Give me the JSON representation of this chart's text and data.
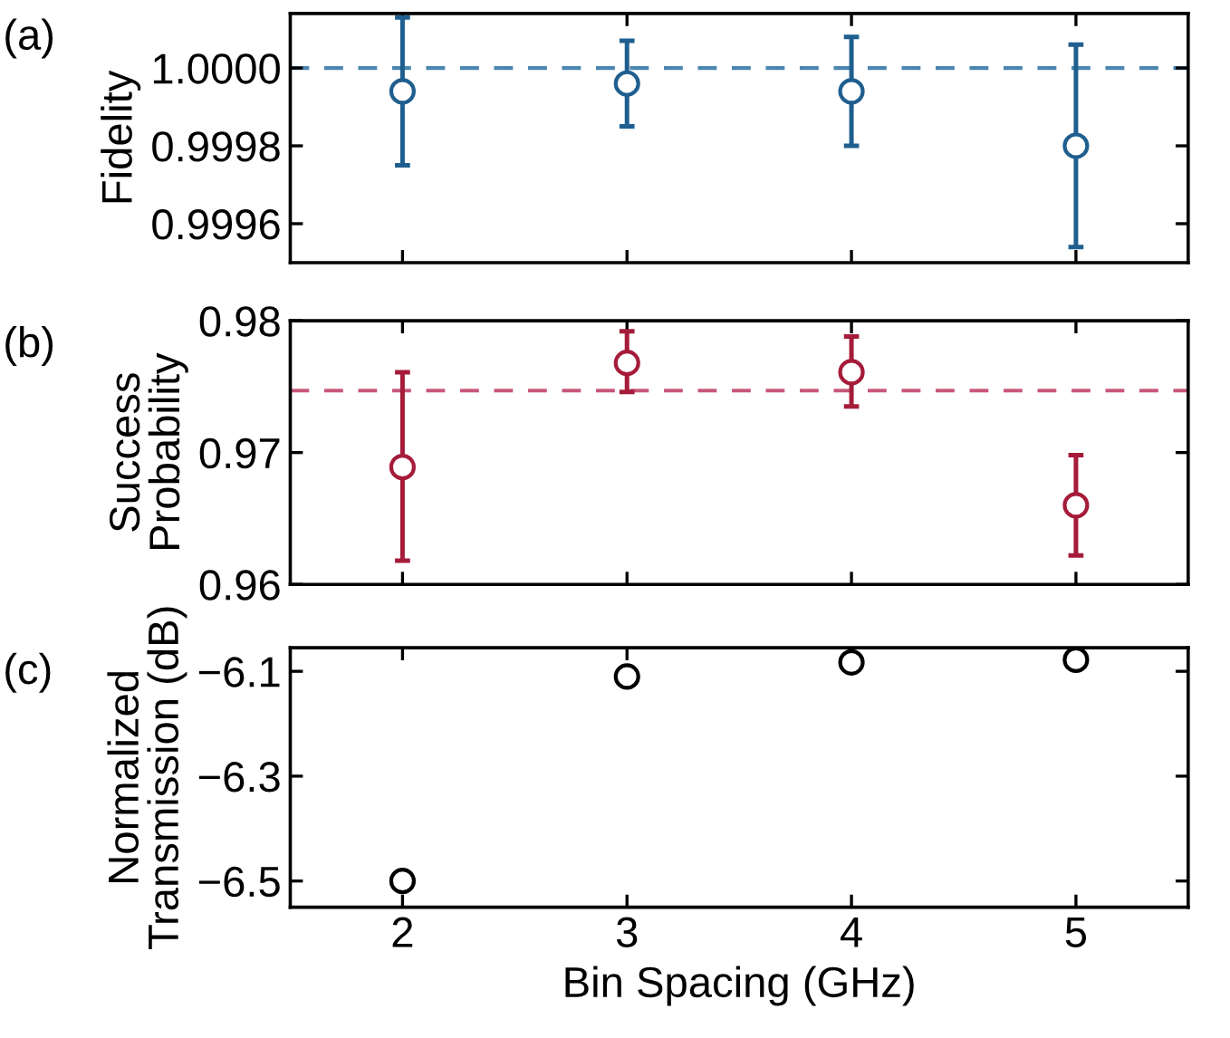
{
  "chart_data": [
    {
      "type": "scatter",
      "ylabel": "Fidelity",
      "annotations": [
        "(a)"
      ],
      "x": [
        2,
        3,
        4,
        5
      ],
      "xlim": [
        1.5,
        5.5
      ],
      "xticks": [
        2,
        3,
        4,
        5
      ],
      "ylim": [
        0.9995,
        1.00014
      ],
      "yticks": [
        {
          "value": 0.9996,
          "label": "0.9996"
        },
        {
          "value": 0.9998,
          "label": "0.9998"
        },
        {
          "value": 1.0,
          "label": "1.0000"
        }
      ],
      "tick_labels": "y",
      "marker": "circle",
      "grid": false,
      "legend": false,
      "series": [
        {
          "color": "#1f5f8f",
          "values": [
            0.99994,
            0.99996,
            0.99994,
            0.9998
          ],
          "errors": [
            [
              0.99975,
              1.00013
            ],
            [
              0.99985,
              1.00007
            ],
            [
              0.9998,
              1.00008
            ],
            [
              0.99954,
              1.00006
            ]
          ]
        }
      ],
      "ref_lines": [
        {
          "axis": "y",
          "value": 1.0,
          "color": "#4a86b0",
          "line_style": "dashed"
        }
      ]
    },
    {
      "type": "scatter",
      "ylabel": "Success\nProbability",
      "annotations": [
        "(b)"
      ],
      "x": [
        2,
        3,
        4,
        5
      ],
      "xlim": [
        1.5,
        5.5
      ],
      "xticks": [
        2,
        3,
        4,
        5
      ],
      "ylim": [
        0.96,
        0.98
      ],
      "yticks": [
        {
          "value": 0.96,
          "label": "0.96"
        },
        {
          "value": 0.97,
          "label": "0.97"
        },
        {
          "value": 0.98,
          "label": "0.98"
        }
      ],
      "tick_labels": "y",
      "marker": "circle",
      "grid": false,
      "legend": false,
      "series": [
        {
          "color": "#a51c3a",
          "values": [
            0.9689,
            0.9768,
            0.9761,
            0.966
          ],
          "errors": [
            [
              0.9618,
              0.9761
            ],
            [
              0.9746,
              0.9792
            ],
            [
              0.9735,
              0.9788
            ],
            [
              0.9622,
              0.9698
            ]
          ]
        }
      ],
      "ref_lines": [
        {
          "axis": "y",
          "value": 0.9747,
          "color": "#c8587a",
          "line_style": "dashed"
        }
      ]
    },
    {
      "type": "scatter",
      "ylabel": "Normalized\nTransmission (dB)",
      "xlabel": "Bin Spacing (GHz)",
      "annotations": [
        "(c)"
      ],
      "x": [
        2,
        3,
        4,
        5
      ],
      "xlim": [
        1.5,
        5.5
      ],
      "xticks": [
        2,
        3,
        4,
        5
      ],
      "ylim": [
        -6.55,
        -6.055
      ],
      "yticks": [
        {
          "value": -6.5,
          "label": "−6.5"
        },
        {
          "value": -6.3,
          "label": "−6.3"
        },
        {
          "value": -6.1,
          "label": "−6.1"
        }
      ],
      "marker": "circle",
      "grid": false,
      "legend": false,
      "series": [
        {
          "color": "#000000",
          "values": [
            -6.5,
            -6.11,
            -6.083,
            -6.078
          ]
        }
      ]
    }
  ]
}
